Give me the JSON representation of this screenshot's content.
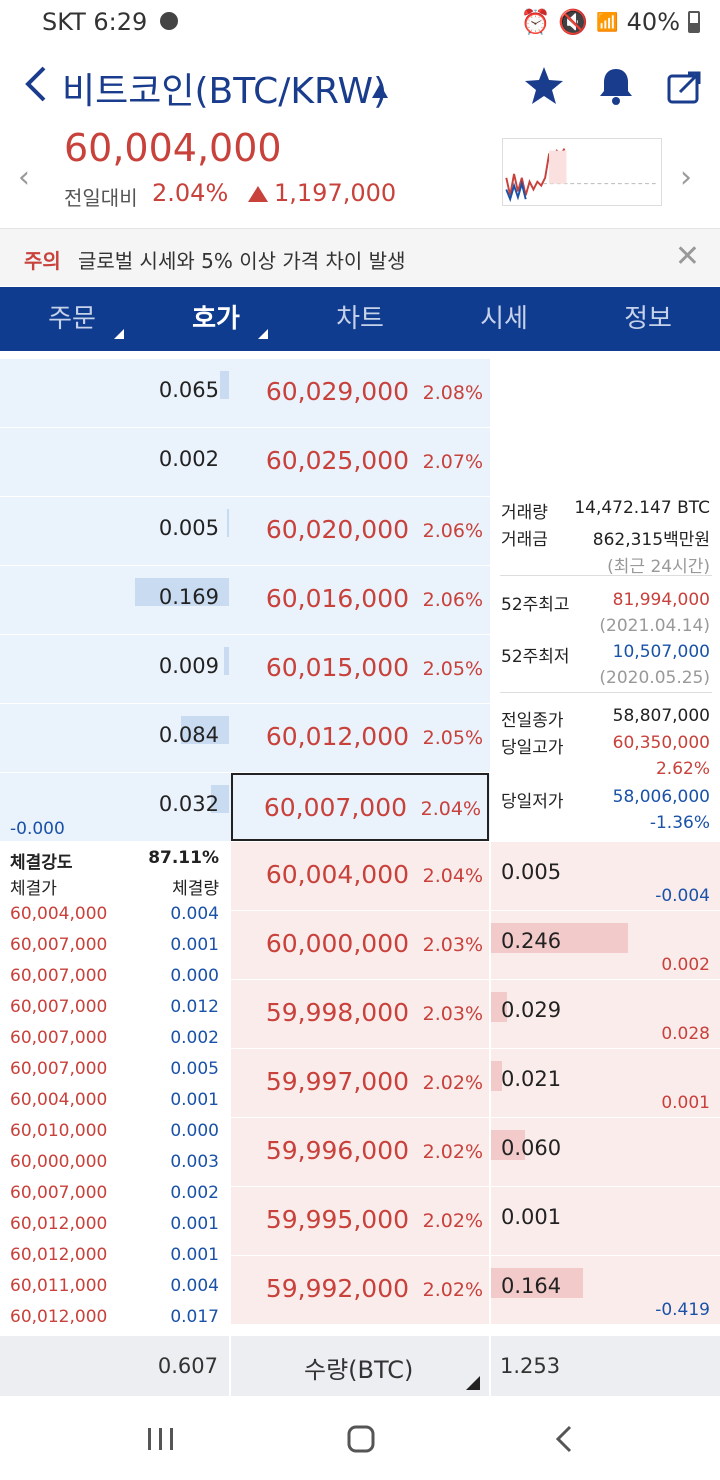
{
  "status": {
    "carrier_time": "SKT 6:29",
    "battery": "40%"
  },
  "header": {
    "title": "비트코인(BTC/KRW)"
  },
  "price": {
    "current": "60,004,000",
    "prev_label": "전일대비",
    "change_pct": "2.04%",
    "change_amt": "1,197,000"
  },
  "notice": {
    "tag": "주의",
    "text": "글로벌 시세와 5% 이상 가격 차이 발생"
  },
  "tabs": [
    {
      "label": "주문"
    },
    {
      "label": "호가"
    },
    {
      "label": "차트"
    },
    {
      "label": "시세"
    },
    {
      "label": "정보"
    }
  ],
  "asks": [
    {
      "qty": "0.065",
      "price": "60,029,000",
      "pct": "2.08%",
      "bar": 0.04
    },
    {
      "qty": "0.002",
      "price": "60,025,000",
      "pct": "2.07%",
      "bar": 0.0
    },
    {
      "qty": "0.005",
      "price": "60,020,000",
      "pct": "2.06%",
      "bar": 0.01
    },
    {
      "qty": "0.169",
      "price": "60,016,000",
      "pct": "2.06%",
      "bar": 0.41
    },
    {
      "qty": "0.009",
      "price": "60,015,000",
      "pct": "2.05%",
      "bar": 0.02
    },
    {
      "qty": "0.084",
      "price": "60,012,000",
      "pct": "2.05%",
      "bar": 0.21
    },
    {
      "qty": "0.032",
      "price": "60,007,000",
      "pct": "2.04%",
      "bar": 0.08,
      "sub": "-0.000"
    }
  ],
  "bids": [
    {
      "qty": "0.005",
      "price": "60,004,000",
      "pct": "2.04%",
      "sub": "-0.004",
      "bar": 0.0
    },
    {
      "qty": "0.246",
      "price": "60,000,000",
      "pct": "2.03%",
      "sub": "0.002",
      "bar": 0.6
    },
    {
      "qty": "0.029",
      "price": "59,998,000",
      "pct": "2.03%",
      "sub": "0.028",
      "bar": 0.07
    },
    {
      "qty": "0.021",
      "price": "59,997,000",
      "pct": "2.02%",
      "sub": "0.001",
      "bar": 0.05
    },
    {
      "qty": "0.060",
      "price": "59,996,000",
      "pct": "2.02%",
      "sub": "",
      "bar": 0.15
    },
    {
      "qty": "0.001",
      "price": "59,995,000",
      "pct": "2.02%",
      "sub": "",
      "bar": 0.0
    },
    {
      "qty": "0.164",
      "price": "59,992,000",
      "pct": "2.02%",
      "sub": "-0.419",
      "bar": 0.4
    }
  ],
  "info": {
    "vol_label": "거래량",
    "vol": "14,472.147 BTC",
    "amt_label": "거래금",
    "amt": "862,315백만원",
    "period": "(최근 24시간)",
    "high52_label": "52주최고",
    "high52": "81,994,000",
    "high52_date": "(2021.04.14)",
    "low52_label": "52주최저",
    "low52": "10,507,000",
    "low52_date": "(2020.05.25)",
    "prev_close_label": "전일종가",
    "prev_close": "58,807,000",
    "day_high_label": "당일고가",
    "day_high": "60,350,000",
    "day_high_pct": "2.62%",
    "day_low_label": "당일저가",
    "day_low": "58,006,000",
    "day_low_pct": "-1.36%"
  },
  "trades": {
    "strength_label": "체결강도",
    "strength": "87.11%",
    "price_header": "체결가",
    "qty_header": "체결량",
    "rows": [
      {
        "price": "60,004,000",
        "qty": "0.004"
      },
      {
        "price": "60,007,000",
        "qty": "0.001"
      },
      {
        "price": "60,007,000",
        "qty": "0.000"
      },
      {
        "price": "60,007,000",
        "qty": "0.012"
      },
      {
        "price": "60,007,000",
        "qty": "0.002"
      },
      {
        "price": "60,007,000",
        "qty": "0.005"
      },
      {
        "price": "60,004,000",
        "qty": "0.001"
      },
      {
        "price": "60,010,000",
        "qty": "0.000"
      },
      {
        "price": "60,000,000",
        "qty": "0.003"
      },
      {
        "price": "60,007,000",
        "qty": "0.002"
      },
      {
        "price": "60,012,000",
        "qty": "0.001"
      },
      {
        "price": "60,012,000",
        "qty": "0.001"
      },
      {
        "price": "60,011,000",
        "qty": "0.004"
      },
      {
        "price": "60,012,000",
        "qty": "0.017"
      }
    ]
  },
  "summary": {
    "ask_total": "0.607",
    "unit_label": "수량(BTC)",
    "bid_total": "1.253"
  },
  "colors": {
    "up": "#c8413b",
    "down": "#1a52a8",
    "navy": "#0f3c8f"
  }
}
